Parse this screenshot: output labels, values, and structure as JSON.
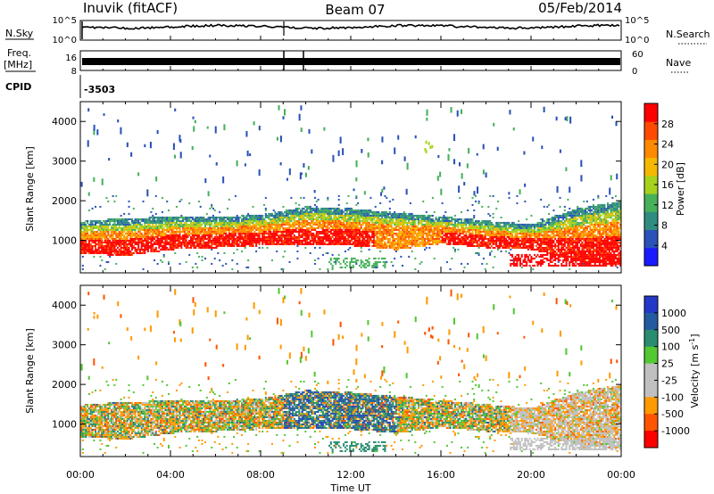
{
  "header": {
    "title_left": "Inuvik (fitACF)",
    "title_center": "Beam 07",
    "title_right": "05/Feb/2014"
  },
  "side_labels": {
    "nsky": "N.Sky",
    "nsearch": "N.Search",
    "freq": "Freq.",
    "mhz": "[MHz]",
    "nave": "Nave",
    "cpid": "CPID",
    "cpid_value": "-3503"
  },
  "small_axes": {
    "noise_left_ticks": [
      "10^5",
      "10^0"
    ],
    "noise_right_ticks": [
      "10^5",
      "10^0"
    ],
    "freq_left_ticks": [
      "16",
      "8"
    ],
    "nave_right_ticks": [
      "60",
      "0"
    ]
  },
  "colors": {
    "power_scale": [
      "#1a1aff",
      "#2a52b8",
      "#2f8c80",
      "#46b05a",
      "#a6d21e",
      "#f5b800",
      "#ff8a00",
      "#ff4a00",
      "#ff0000"
    ],
    "velocity_scale": [
      "#2438c8",
      "#245aa0",
      "#2a8c70",
      "#52c832",
      "#c0c0c0",
      "#c0c0c0",
      "#ff9a00",
      "#ff5500",
      "#ff0000"
    ]
  },
  "chart_data": [
    {
      "type": "heatmap",
      "panel": "power",
      "title": "Inuvik (fitACF)  Beam 07  05/Feb/2014",
      "xlabel": "Time UT",
      "ylabel": "Slant Range [km]",
      "x_tick_labels": [
        "00:00",
        "04:00",
        "08:00",
        "12:00",
        "16:00",
        "20:00",
        "00:00"
      ],
      "x_range_hours": [
        0,
        24
      ],
      "y_ticks": [
        1000,
        2000,
        3000,
        4000
      ],
      "ylim": [
        180,
        4500
      ],
      "colorbar": {
        "label": "Power [dB]",
        "ticks": [
          4,
          8,
          12,
          16,
          20,
          24,
          28
        ],
        "range": [
          0,
          32
        ]
      },
      "main_band_km": [
        {
          "hour": 0,
          "low": 700,
          "high": 1400
        },
        {
          "hour": 2,
          "low": 650,
          "high": 1450
        },
        {
          "hour": 4,
          "low": 800,
          "high": 1500
        },
        {
          "hour": 6,
          "low": 850,
          "high": 1500
        },
        {
          "hour": 8,
          "low": 900,
          "high": 1550
        },
        {
          "hour": 10,
          "low": 900,
          "high": 1750
        },
        {
          "hour": 12,
          "low": 900,
          "high": 1700
        },
        {
          "hour": 14,
          "low": 800,
          "high": 1600
        },
        {
          "hour": 16,
          "low": 950,
          "high": 1500
        },
        {
          "hour": 18,
          "low": 850,
          "high": 1400
        },
        {
          "hour": 20,
          "low": 800,
          "high": 1300
        },
        {
          "hour": 22,
          "low": 500,
          "high": 1700
        },
        {
          "hour": 24,
          "low": 400,
          "high": 1900
        }
      ]
    },
    {
      "type": "heatmap",
      "panel": "velocity",
      "xlabel": "Time UT",
      "ylabel": "Slant Range [km]",
      "x_tick_labels": [
        "00:00",
        "04:00",
        "08:00",
        "12:00",
        "16:00",
        "20:00",
        "00:00"
      ],
      "x_range_hours": [
        0,
        24
      ],
      "y_ticks": [
        1000,
        2000,
        3000,
        4000
      ],
      "ylim": [
        180,
        4500
      ],
      "colorbar": {
        "label": "Velocity [m s^-1]",
        "ticks": [
          1000,
          500,
          100,
          25,
          -25,
          -100,
          -500,
          -1000
        ]
      }
    }
  ]
}
